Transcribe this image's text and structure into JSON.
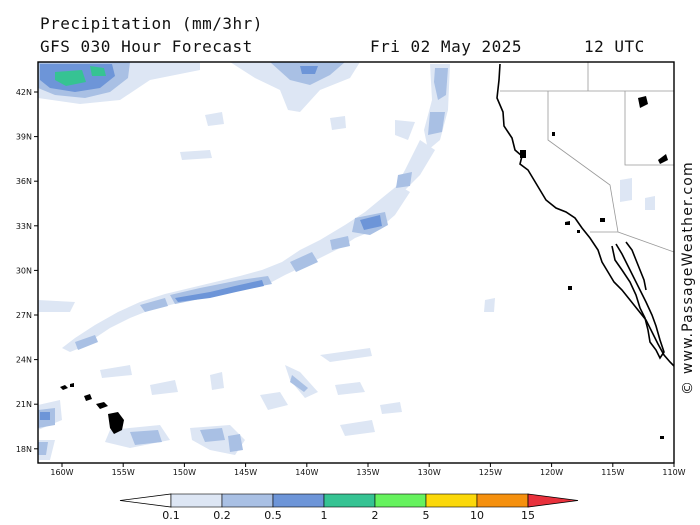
{
  "header": {
    "title": "Precipitation (mm/3hr)",
    "model": "GFS 030 Hour Forecast",
    "date": "Fri 02 May 2025",
    "time": "12 UTC"
  },
  "credit": "© www.PassageWeather.com",
  "axes": {
    "lat_labels": [
      "42N",
      "39N",
      "36N",
      "33N",
      "30N",
      "27N",
      "24N",
      "21N",
      "18N"
    ],
    "lon_labels": [
      "160W",
      "155W",
      "150W",
      "145W",
      "140W",
      "135W",
      "130W",
      "125W",
      "120W",
      "115W",
      "110W"
    ]
  },
  "legend": {
    "labels": [
      "0.1",
      "0.2",
      "0.5",
      "1",
      "2",
      "5",
      "10",
      "15"
    ],
    "colors": [
      "#ffffff",
      "#dde6f4",
      "#a9c0e4",
      "#6d95d8",
      "#36c393",
      "#66f25e",
      "#fbd80a",
      "#f5900e",
      "#e8313c"
    ]
  },
  "map": {
    "region": "Eastern North Pacific / US West Coast",
    "lon_range": [
      -161,
      -110
    ],
    "lat_range": [
      17,
      43
    ]
  }
}
